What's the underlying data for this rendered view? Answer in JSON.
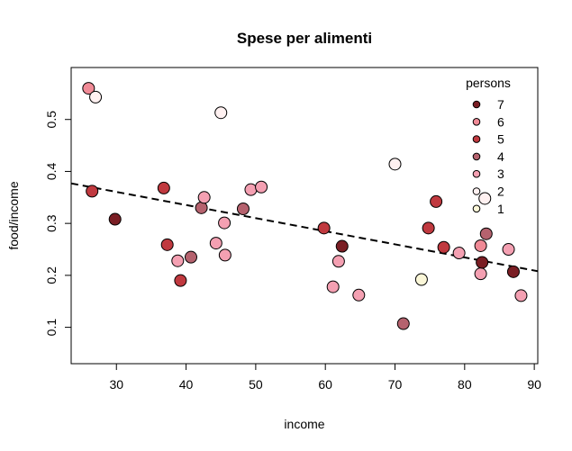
{
  "chart_data": {
    "type": "scatter",
    "title": "Spese per alimenti",
    "xlabel": "income",
    "ylabel": "food/income",
    "xlim": [
      23.5,
      90.5
    ],
    "ylim": [
      0.03,
      0.6
    ],
    "x_ticks": [
      30,
      40,
      50,
      60,
      70,
      80,
      90
    ],
    "y_ticks": [
      0.1,
      0.2,
      0.3,
      0.4,
      0.5
    ],
    "grid": false,
    "legend": {
      "title": "persons",
      "position": "top-right",
      "entries": [
        {
          "label": "7",
          "color": "#7a1e24"
        },
        {
          "label": "6",
          "color": "#f08a96"
        },
        {
          "label": "5",
          "color": "#c0393f"
        },
        {
          "label": "4",
          "color": "#b5626e"
        },
        {
          "label": "3",
          "color": "#f4a0b2"
        },
        {
          "label": "2",
          "color": "#fff1f1"
        },
        {
          "label": "1",
          "color": "#fbf7d8"
        }
      ]
    },
    "colors": {
      "1": "#fbf7d8",
      "2": "#fff1f1",
      "3": "#f4a0b2",
      "4": "#b5626e",
      "5": "#c0393f",
      "6": "#f08a96",
      "7": "#7a1e24"
    },
    "points": [
      {
        "x": 26.0,
        "y": 0.56,
        "persons": 6
      },
      {
        "x": 27.0,
        "y": 0.543,
        "persons": 2
      },
      {
        "x": 26.5,
        "y": 0.362,
        "persons": 5
      },
      {
        "x": 29.8,
        "y": 0.308,
        "persons": 7
      },
      {
        "x": 36.8,
        "y": 0.368,
        "persons": 5
      },
      {
        "x": 37.3,
        "y": 0.259,
        "persons": 5
      },
      {
        "x": 38.8,
        "y": 0.228,
        "persons": 3
      },
      {
        "x": 39.2,
        "y": 0.19,
        "persons": 5
      },
      {
        "x": 40.7,
        "y": 0.235,
        "persons": 4
      },
      {
        "x": 42.2,
        "y": 0.33,
        "persons": 4
      },
      {
        "x": 42.6,
        "y": 0.35,
        "persons": 3
      },
      {
        "x": 44.3,
        "y": 0.262,
        "persons": 3
      },
      {
        "x": 45.0,
        "y": 0.513,
        "persons": 2
      },
      {
        "x": 45.5,
        "y": 0.301,
        "persons": 3
      },
      {
        "x": 45.6,
        "y": 0.239,
        "persons": 3
      },
      {
        "x": 48.2,
        "y": 0.328,
        "persons": 4
      },
      {
        "x": 49.3,
        "y": 0.365,
        "persons": 3
      },
      {
        "x": 50.8,
        "y": 0.37,
        "persons": 3
      },
      {
        "x": 59.8,
        "y": 0.291,
        "persons": 5
      },
      {
        "x": 61.1,
        "y": 0.178,
        "persons": 3
      },
      {
        "x": 61.9,
        "y": 0.227,
        "persons": 3
      },
      {
        "x": 62.4,
        "y": 0.256,
        "persons": 7
      },
      {
        "x": 64.8,
        "y": 0.162,
        "persons": 3
      },
      {
        "x": 70.0,
        "y": 0.414,
        "persons": 2
      },
      {
        "x": 71.2,
        "y": 0.107,
        "persons": 4
      },
      {
        "x": 73.8,
        "y": 0.192,
        "persons": 1
      },
      {
        "x": 74.8,
        "y": 0.291,
        "persons": 5
      },
      {
        "x": 75.9,
        "y": 0.342,
        "persons": 5
      },
      {
        "x": 77.0,
        "y": 0.254,
        "persons": 5
      },
      {
        "x": 79.2,
        "y": 0.243,
        "persons": 3
      },
      {
        "x": 82.3,
        "y": 0.257,
        "persons": 6
      },
      {
        "x": 82.3,
        "y": 0.203,
        "persons": 3
      },
      {
        "x": 82.5,
        "y": 0.225,
        "persons": 7
      },
      {
        "x": 82.9,
        "y": 0.348,
        "persons": 2
      },
      {
        "x": 83.1,
        "y": 0.28,
        "persons": 4
      },
      {
        "x": 86.3,
        "y": 0.25,
        "persons": 3
      },
      {
        "x": 87.0,
        "y": 0.207,
        "persons": 7
      },
      {
        "x": 88.1,
        "y": 0.161,
        "persons": 3
      }
    ],
    "fit_line": {
      "style": "dashed",
      "x": [
        23.5,
        90.5
      ],
      "y": [
        0.377,
        0.208
      ]
    }
  }
}
